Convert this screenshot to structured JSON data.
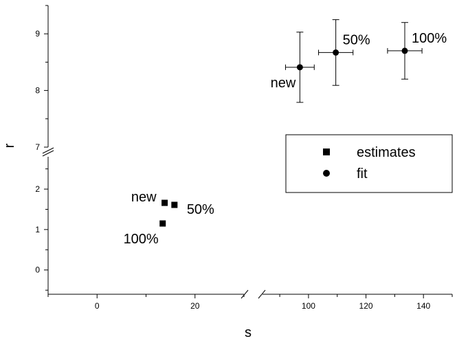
{
  "chart_data": {
    "type": "scatter",
    "xlabel": "s",
    "ylabel": "r",
    "x_axis": {
      "broken": true,
      "segments": [
        {
          "range": [
            -10,
            30
          ],
          "ticks": [
            0,
            20
          ]
        },
        {
          "range": [
            84,
            150
          ],
          "ticks": [
            100,
            120,
            140
          ]
        }
      ]
    },
    "y_axis": {
      "broken": true,
      "segments": [
        {
          "range": [
            -0.6,
            2.8
          ],
          "ticks": [
            0,
            1,
            2
          ]
        },
        {
          "range": [
            7,
            9.5
          ],
          "ticks": [
            7,
            8,
            9
          ]
        }
      ]
    },
    "series": [
      {
        "name": "estimates",
        "marker": "square",
        "points": [
          {
            "x": 13.8,
            "y": 1.66
          },
          {
            "x": 15.8,
            "y": 1.61
          },
          {
            "x": 13.4,
            "y": 1.15
          }
        ]
      },
      {
        "name": "fit",
        "marker": "circle",
        "points": [
          {
            "x": 97,
            "y": 8.41,
            "xerr": 5,
            "yerr": 0.62
          },
          {
            "x": 109.5,
            "y": 8.67,
            "xerr": 6,
            "yerr": 0.58
          },
          {
            "x": 133.5,
            "y": 8.7,
            "xerr": 6,
            "yerr": 0.5
          }
        ]
      }
    ],
    "annotations": [
      {
        "text": "new",
        "x": 13.8,
        "y": 1.66,
        "anchor": "left"
      },
      {
        "text": "50%",
        "x": 15.8,
        "y": 1.61,
        "anchor": "right"
      },
      {
        "text": "100%",
        "x": 13.4,
        "y": 1.15,
        "anchor": "below-left"
      },
      {
        "text": "new",
        "x": 97,
        "y": 8.41,
        "anchor": "below-left"
      },
      {
        "text": "50%",
        "x": 109.5,
        "y": 8.67,
        "anchor": "above-right"
      },
      {
        "text": "100%",
        "x": 133.5,
        "y": 8.7,
        "anchor": "above-right"
      }
    ],
    "legend": {
      "placement": "right",
      "entries": [
        "estimates",
        "fit"
      ]
    },
    "grid": false
  }
}
